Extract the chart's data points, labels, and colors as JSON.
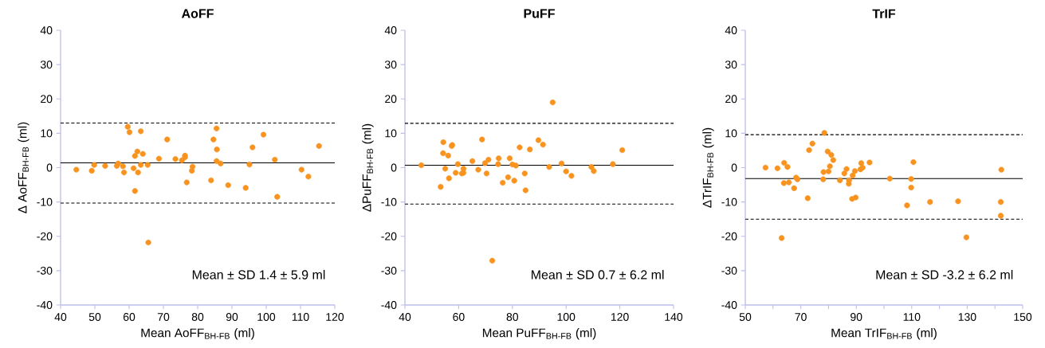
{
  "chart_data": [
    {
      "type": "scatter",
      "title": "AoFF",
      "xlabel": "Mean AoFF$_{BH-FB}$ (ml)",
      "ylabel": "Δ AoFF$_{BH-FB}$ (ml)",
      "color": "#f7931e",
      "grid": false,
      "xlim": [
        40,
        120
      ],
      "xticks": [
        40,
        50,
        60,
        70,
        80,
        90,
        100,
        110,
        120
      ],
      "ylim": [
        -40,
        40
      ],
      "yticks": [
        -40,
        -30,
        -20,
        -10,
        0,
        10,
        20,
        30,
        40
      ],
      "x": [
        44.6,
        49.1,
        49.8,
        53.0,
        56.4,
        56.8,
        58.2,
        58.5,
        59.6,
        60.1,
        61.3,
        61.7,
        61.7,
        62.4,
        62.6,
        63.4,
        63.4,
        64.0,
        65.4,
        65.6,
        68.7,
        71.1,
        73.5,
        75.4,
        76.3,
        76.3,
        76.8,
        78.3,
        78.5,
        83.9,
        84.6,
        85.5,
        85.6,
        85.5,
        86.7,
        88.9,
        94.0,
        95.1,
        96.0,
        99.2,
        102.5,
        103.2,
        110.3,
        112.3,
        115.4
      ],
      "values": [
        -0.6,
        -0.9,
        0.8,
        0.5,
        0.5,
        1.2,
        0.4,
        -1.4,
        11.9,
        10.3,
        -0.2,
        -6.8,
        3.4,
        4.7,
        -1.4,
        10.6,
        0.8,
        4.0,
        0.8,
        -21.8,
        2.6,
        8.2,
        2.5,
        2.1,
        3.5,
        3.0,
        -4.3,
        -0.9,
        0.3,
        -3.7,
        8.2,
        11.4,
        5.3,
        1.9,
        1.2,
        -5.1,
        -5.9,
        0.9,
        5.9,
        9.6,
        2.3,
        -8.5,
        -0.6,
        -2.6,
        6.3
      ],
      "ref_lines": [
        {
          "axis": "y",
          "value": 1.4,
          "color": "#000000",
          "line_style": "solid"
        },
        {
          "axis": "y",
          "value": 13.0,
          "color": "#000000",
          "line_style": "dashed"
        },
        {
          "axis": "y",
          "value": -10.3,
          "color": "#000000",
          "line_style": "dashed"
        }
      ],
      "annotations": [
        "Mean ± SD 1.4 ± 5.9 ml"
      ]
    },
    {
      "type": "scatter",
      "title": "PuFF",
      "xlabel": "Mean PuFF$_{BH-FB}$ (ml)",
      "ylabel": "ΔPuFF$_{BH-FB}$ (ml)",
      "color": "#f7931e",
      "grid": false,
      "xlim": [
        40,
        140
      ],
      "xticks": [
        40,
        60,
        80,
        100,
        120,
        140
      ],
      "ylim": [
        -40,
        40
      ],
      "yticks": [
        -40,
        -30,
        -20,
        -10,
        0,
        10,
        20,
        30,
        40
      ],
      "x": [
        46.1,
        53.3,
        54.2,
        54.3,
        55.0,
        56.1,
        56.4,
        57.4,
        57.6,
        58.9,
        59.7,
        61.2,
        61.8,
        61.8,
        65.1,
        67.3,
        68.7,
        69.8,
        70.4,
        71.1,
        72.5,
        74.7,
        74.9,
        76.4,
        78.4,
        79.0,
        80.0,
        80.7,
        81.3,
        82.7,
        84.6,
        84.9,
        86.5,
        89.7,
        91.4,
        93.7,
        95.0,
        98.3,
        100.0,
        102.0,
        109.4,
        110.3,
        117.4,
        120.9
      ],
      "values": [
        0.7,
        -5.6,
        4.2,
        7.4,
        -0.3,
        3.5,
        -3.1,
        6.3,
        6.6,
        -1.5,
        1.0,
        -1.7,
        -1.5,
        -0.3,
        1.9,
        -0.6,
        8.2,
        1.3,
        -1.7,
        2.3,
        -27.1,
        1.0,
        2.7,
        -4.4,
        -2.8,
        2.7,
        0.9,
        -3.8,
        0.6,
        5.9,
        -1.7,
        -6.6,
        5.3,
        8.0,
        6.7,
        0.2,
        19.0,
        1.2,
        -1.1,
        -2.4,
        0.2,
        -1.0,
        1.0,
        5.1
      ],
      "ref_lines": [
        {
          "axis": "y",
          "value": 0.7,
          "color": "#000000",
          "line_style": "solid"
        },
        {
          "axis": "y",
          "value": 12.9,
          "color": "#000000",
          "line_style": "dashed"
        },
        {
          "axis": "y",
          "value": -10.6,
          "color": "#000000",
          "line_style": "dashed"
        }
      ],
      "annotations": [
        "Mean ± SD 0.7 ± 6.2 ml"
      ]
    },
    {
      "type": "scatter",
      "title": "TrIF",
      "xlabel": "Mean TrIF$_{BH-FB}$ (ml)",
      "ylabel": "ΔTrIF$_{BH-FB}$ (ml)",
      "color": "#f7931e",
      "grid": false,
      "xlim": [
        50,
        150
      ],
      "xticks": [
        50,
        {
          "value": 60,
          "label": null
        },
        70,
        {
          "value": 80,
          "label": null
        },
        90,
        {
          "value": 100,
          "label": null
        },
        110,
        {
          "value": 120,
          "label": null
        },
        130,
        {
          "value": 140,
          "label": null
        },
        150
      ],
      "ylim": [
        -40,
        40
      ],
      "yticks": [
        -40,
        -30,
        -20,
        -10,
        0,
        10,
        20,
        30,
        40
      ],
      "x": [
        57.3,
        61.6,
        63.1,
        63.9,
        64.0,
        65.2,
        65.7,
        67.6,
        68.3,
        68.8,
        72.5,
        73.0,
        74.2,
        78.1,
        78.2,
        78.5,
        79.7,
        80.0,
        80.5,
        81.0,
        81.7,
        84.1,
        85.7,
        86.5,
        87.3,
        87.4,
        88.5,
        88.7,
        89.5,
        89.8,
        91.5,
        91.8,
        92.3,
        94.8,
        102.1,
        108.3,
        109.8,
        109.8,
        110.6,
        116.6,
        126.7,
        129.7,
        142.1,
        142.1,
        142.3
      ],
      "values": [
        0.0,
        -0.2,
        -20.5,
        -4.5,
        1.4,
        0.2,
        -4.3,
        -6.0,
        -2.9,
        -3.4,
        -8.9,
        5.1,
        7.0,
        -3.4,
        -1.3,
        10.1,
        4.7,
        -1.1,
        0.4,
        3.7,
        2.2,
        -3.7,
        -1.7,
        -0.4,
        -4.7,
        -3.7,
        -9.1,
        -2.3,
        -1.0,
        -8.7,
        -0.5,
        1.3,
        0.0,
        1.5,
        -3.2,
        -11.0,
        -3.3,
        -5.8,
        1.6,
        -10.0,
        -9.8,
        -20.3,
        -10.0,
        -14.0,
        -0.6
      ],
      "ref_lines": [
        {
          "axis": "y",
          "value": -3.2,
          "color": "#000000",
          "line_style": "solid"
        },
        {
          "axis": "y",
          "value": 9.6,
          "color": "#000000",
          "line_style": "dashed"
        },
        {
          "axis": "y",
          "value": -15.0,
          "color": "#000000",
          "line_style": "dashed"
        }
      ],
      "annotations": [
        "Mean ± SD -3.2 ± 6.2 ml"
      ]
    }
  ]
}
